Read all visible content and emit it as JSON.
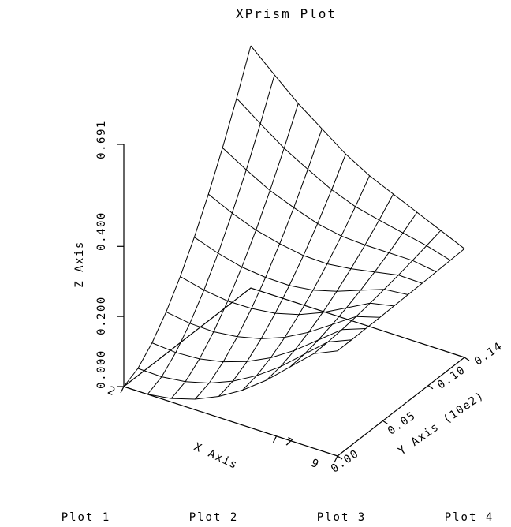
{
  "chart_data": {
    "type": "surface",
    "title": "XPrism Plot",
    "xlabel": "X Axis",
    "ylabel": "Y Axis (10e2)",
    "zlabel": "Z Axis",
    "x_ticks": [
      "2",
      "7",
      "9"
    ],
    "y_ticks": [
      "0.00",
      "0.05",
      "0.10",
      "0.14"
    ],
    "z_ticks": [
      "0.000",
      "0.200",
      "0.400",
      "0.691"
    ],
    "xlim": [
      2,
      9
    ],
    "ylim": [
      0,
      0.14
    ],
    "zlim": [
      0,
      0.691
    ],
    "grid_size": [
      10,
      10
    ],
    "z_at_y0_by_x": [
      0.0,
      0.0,
      0.01,
      0.03,
      0.06,
      0.1,
      0.15,
      0.21,
      0.27,
      0.3
    ],
    "z_at_ymax_by_x": [
      0.691,
      0.63,
      0.57,
      0.52,
      0.47,
      0.43,
      0.4,
      0.37,
      0.34,
      0.31
    ]
  },
  "legend": [
    {
      "label": "Plot 1"
    },
    {
      "label": "Plot 2"
    },
    {
      "label": "Plot 3"
    },
    {
      "label": "Plot 4"
    }
  ]
}
